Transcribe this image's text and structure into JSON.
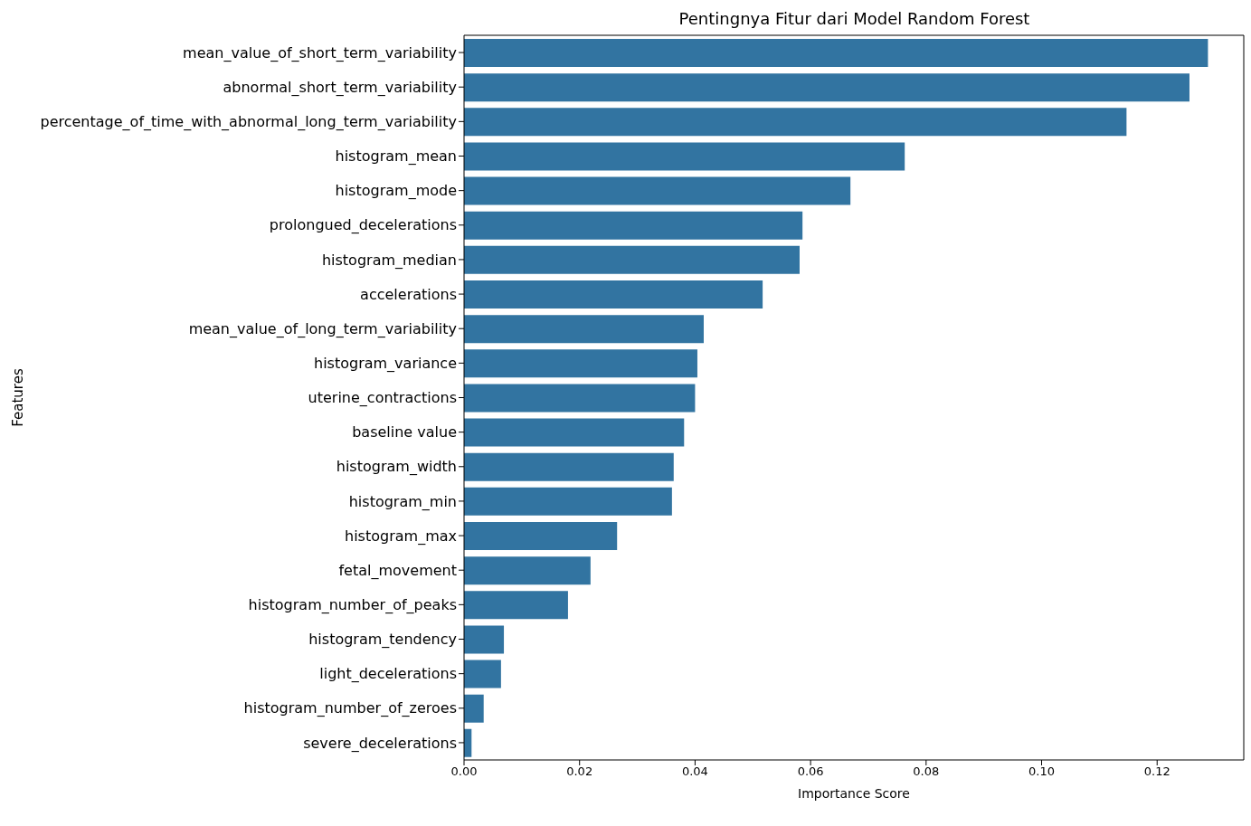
{
  "chart_data": {
    "type": "bar",
    "orientation": "horizontal",
    "title": "Pentingnya Fitur dari Model Random Forest",
    "xlabel": "Importance Score",
    "ylabel": "Features",
    "categories": [
      "mean_value_of_short_term_variability",
      "abnormal_short_term_variability",
      "percentage_of_time_with_abnormal_long_term_variability",
      "histogram_mean",
      "histogram_mode",
      "prolongued_decelerations",
      "histogram_median",
      "accelerations",
      "mean_value_of_long_term_variability",
      "histogram_variance",
      "uterine_contractions",
      "baseline value",
      "histogram_width",
      "histogram_min",
      "histogram_max",
      "fetal_movement",
      "histogram_number_of_peaks",
      "histogram_tendency",
      "light_decelerations",
      "histogram_number_of_zeroes",
      "severe_decelerations"
    ],
    "values": [
      0.1288,
      0.1256,
      0.1147,
      0.0763,
      0.0669,
      0.0586,
      0.0581,
      0.0517,
      0.0415,
      0.0404,
      0.04,
      0.0381,
      0.0363,
      0.036,
      0.0265,
      0.0219,
      0.018,
      0.0069,
      0.0064,
      0.0034,
      0.0013
    ],
    "color": "#3274a1",
    "xlim": [
      0,
      0.135
    ],
    "xticks": [
      {
        "value": 0,
        "label": "0.00"
      },
      {
        "value": 0.02,
        "label": "0.02"
      },
      {
        "value": 0.04,
        "label": "0.04"
      },
      {
        "value": 0.06,
        "label": "0.06"
      },
      {
        "value": 0.08,
        "label": "0.08"
      },
      {
        "value": 0.1,
        "label": "0.10"
      },
      {
        "value": 0.12,
        "label": "0.12"
      }
    ]
  }
}
